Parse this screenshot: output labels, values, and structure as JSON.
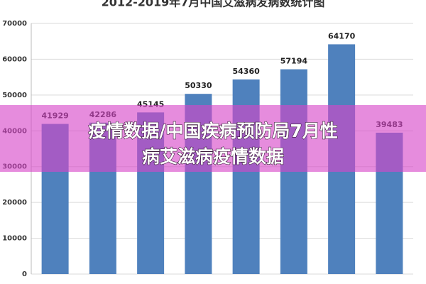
{
  "chart_data": {
    "type": "bar",
    "title": "2012-2019年7月中国艾滋病发病数统计图",
    "values": [
      41929,
      42286,
      45145,
      50330,
      54360,
      57194,
      64170,
      39483
    ],
    "color": "#4f81bd",
    "ylim": [
      0,
      70000
    ],
    "yticks": [
      0,
      10000,
      20000,
      30000,
      40000,
      50000,
      60000,
      70000
    ],
    "grid": true
  },
  "overlay": {
    "lines": [
      "疫情数据/中国疾病预防局7月性",
      "病艾滋病疫情数据"
    ]
  }
}
